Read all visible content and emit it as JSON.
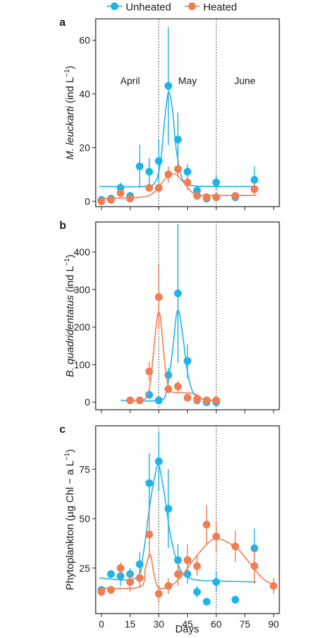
{
  "legend": {
    "items": [
      {
        "label": "Unheated",
        "color": "#1fb4e8"
      },
      {
        "label": "Heated",
        "color": "#f07d52"
      }
    ]
  },
  "x_axis": {
    "label": "Days",
    "ticks": [
      0,
      15,
      30,
      45,
      60,
      75,
      90
    ],
    "range": [
      -3,
      93
    ]
  },
  "chart_data": [
    {
      "type": "scatter",
      "panel_letter": "a",
      "ylabel_italic": "M. leuckarti",
      "ylabel_unit": "(ind L",
      "ylabel_sup": "−1",
      "ylabel_close": ")",
      "ylim": [
        -2,
        68
      ],
      "yticks": [
        0,
        20,
        40,
        60
      ],
      "month_labels": [
        {
          "text": "April",
          "x": 15,
          "y": 45
        },
        {
          "text": "May",
          "x": 45,
          "y": 45
        },
        {
          "text": "June",
          "x": 75,
          "y": 45
        }
      ],
      "vlines": [
        30,
        60
      ],
      "series": [
        {
          "name": "Unheated",
          "color": "#1fb4e8",
          "x": [
            0,
            5,
            10,
            15,
            20,
            25,
            30,
            35,
            40,
            45,
            50,
            55,
            60,
            70,
            80
          ],
          "y": [
            0.5,
            1,
            5,
            2,
            13,
            11,
            15,
            43,
            23,
            11,
            4,
            1,
            7,
            1.5,
            8
          ],
          "err": [
            0.5,
            0.5,
            2,
            1,
            8,
            5,
            8,
            22,
            10,
            3,
            1.5,
            0.5,
            3,
            0.5,
            5
          ],
          "curve": [
            [
              -1,
              5.5
            ],
            [
              22,
              5.5
            ],
            [
              28,
              7
            ],
            [
              31,
              15
            ],
            [
              33,
              30
            ],
            [
              35,
              40.5
            ],
            [
              37,
              35
            ],
            [
              39,
              20
            ],
            [
              42,
              9
            ],
            [
              46,
              6
            ],
            [
              60,
              5.5
            ],
            [
              81,
              5.5
            ]
          ]
        },
        {
          "name": "Heated",
          "color": "#f07d52",
          "x": [
            0,
            5,
            10,
            15,
            25,
            30,
            35,
            40,
            45,
            50,
            55,
            60,
            70,
            80
          ],
          "y": [
            0,
            0.5,
            3,
            1,
            5,
            5,
            10,
            12,
            7,
            2,
            1.5,
            1.5,
            2,
            4.5
          ],
          "err": [
            0.3,
            0.5,
            1,
            0.5,
            1.5,
            2,
            3,
            3,
            3,
            1,
            0.5,
            0.5,
            0.5,
            2
          ],
          "curve": [
            [
              -1,
              1
            ],
            [
              20,
              1.5
            ],
            [
              27,
              3
            ],
            [
              33,
              8
            ],
            [
              38,
              10.3
            ],
            [
              43,
              7
            ],
            [
              48,
              3
            ],
            [
              54,
              2.2
            ],
            [
              81,
              2.2
            ]
          ]
        }
      ]
    },
    {
      "type": "scatter",
      "panel_letter": "b",
      "ylabel_italic": "B. quadridentatus",
      "ylabel_unit": "(ind L",
      "ylabel_sup": "−1",
      "ylabel_close": ")",
      "ylim": [
        -20,
        480
      ],
      "yticks": [
        0,
        100,
        200,
        300,
        400
      ],
      "month_labels": [],
      "vlines": [
        30,
        60
      ],
      "series": [
        {
          "name": "Unheated",
          "color": "#1fb4e8",
          "x": [
            25,
            30,
            35,
            40,
            45,
            50,
            55,
            60
          ],
          "y": [
            20,
            5,
            72,
            290,
            110,
            5,
            0,
            0
          ],
          "err": [
            5,
            5,
            20,
            185,
            45,
            5,
            3,
            3
          ],
          "curve": [
            [
              10,
              5
            ],
            [
              30,
              5
            ],
            [
              34,
              30
            ],
            [
              37,
              130
            ],
            [
              39,
              225
            ],
            [
              40,
              245
            ],
            [
              41,
              230
            ],
            [
              43,
              160
            ],
            [
              45,
              80
            ],
            [
              48,
              25
            ],
            [
              53,
              8
            ],
            [
              61,
              5
            ]
          ]
        },
        {
          "name": "Heated",
          "color": "#f07d52",
          "x": [
            15,
            20,
            25,
            30,
            35,
            40,
            45,
            50,
            55,
            60
          ],
          "y": [
            5,
            5,
            82,
            280,
            35,
            42,
            12,
            8,
            5,
            5
          ],
          "err": [
            3,
            3,
            25,
            85,
            12,
            15,
            5,
            3,
            2,
            2
          ],
          "curve": [
            [
              14,
              5
            ],
            [
              22,
              6
            ],
            [
              25,
              35
            ],
            [
              27,
              120
            ],
            [
              29,
              220
            ],
            [
              30,
              238
            ],
            [
              31,
              220
            ],
            [
              33,
              110
            ],
            [
              35,
              40
            ],
            [
              37,
              27
            ],
            [
              45,
              25
            ],
            [
              50,
              20
            ],
            [
              54,
              5
            ],
            [
              61,
              5
            ]
          ]
        }
      ]
    },
    {
      "type": "scatter",
      "panel_letter": "c",
      "ylabel_italic": "",
      "ylabel_unit": "Phytoplankton (µg Chl − a L",
      "ylabel_sup": "−1",
      "ylabel_close": ")",
      "ylim": [
        2,
        97
      ],
      "yticks": [
        25,
        50,
        75
      ],
      "month_labels": [],
      "vlines": [
        30,
        60
      ],
      "series": [
        {
          "name": "Unheated",
          "color": "#1fb4e8",
          "x": [
            0,
            5,
            10,
            15,
            20,
            25,
            30,
            35,
            40,
            45,
            50,
            55,
            60,
            70,
            80
          ],
          "y": [
            14,
            22,
            21,
            22,
            27,
            68,
            79,
            55,
            29,
            22,
            13,
            8,
            18,
            9,
            35
          ],
          "err": [
            2,
            2,
            5,
            3,
            6,
            15,
            15,
            20,
            8,
            5,
            3,
            2,
            5,
            2,
            10
          ],
          "curve": [
            [
              -1,
              20
            ],
            [
              18,
              20
            ],
            [
              22,
              33
            ],
            [
              25,
              55
            ],
            [
              28,
              72
            ],
            [
              30,
              77
            ],
            [
              33,
              62
            ],
            [
              36,
              42
            ],
            [
              40,
              27
            ],
            [
              44,
              21
            ],
            [
              50,
              19
            ],
            [
              60,
              18.5
            ],
            [
              81,
              18
            ]
          ]
        },
        {
          "name": "Heated",
          "color": "#f07d52",
          "x": [
            0,
            5,
            10,
            15,
            20,
            25,
            30,
            35,
            40,
            45,
            50,
            55,
            60,
            70,
            80,
            90
          ],
          "y": [
            13,
            14,
            25,
            18,
            20,
            42,
            12,
            16,
            22,
            29,
            26,
            47,
            41,
            36,
            26,
            16
          ],
          "err": [
            2,
            2,
            3,
            5,
            5,
            12,
            4,
            4,
            6,
            8,
            5,
            10,
            8,
            8,
            9,
            4
          ],
          "curve": [
            [
              -1,
              15
            ],
            [
              20,
              15.5
            ],
            [
              23,
              25
            ],
            [
              25.5,
              32
            ],
            [
              27.5,
              22
            ],
            [
              30,
              15
            ],
            [
              36,
              16
            ],
            [
              42,
              21
            ],
            [
              48,
              29
            ],
            [
              55,
              37
            ],
            [
              60,
              40
            ],
            [
              66,
              38
            ],
            [
              72,
              34
            ],
            [
              78,
              27
            ],
            [
              84,
              20
            ],
            [
              89,
              17
            ]
          ]
        }
      ]
    }
  ]
}
